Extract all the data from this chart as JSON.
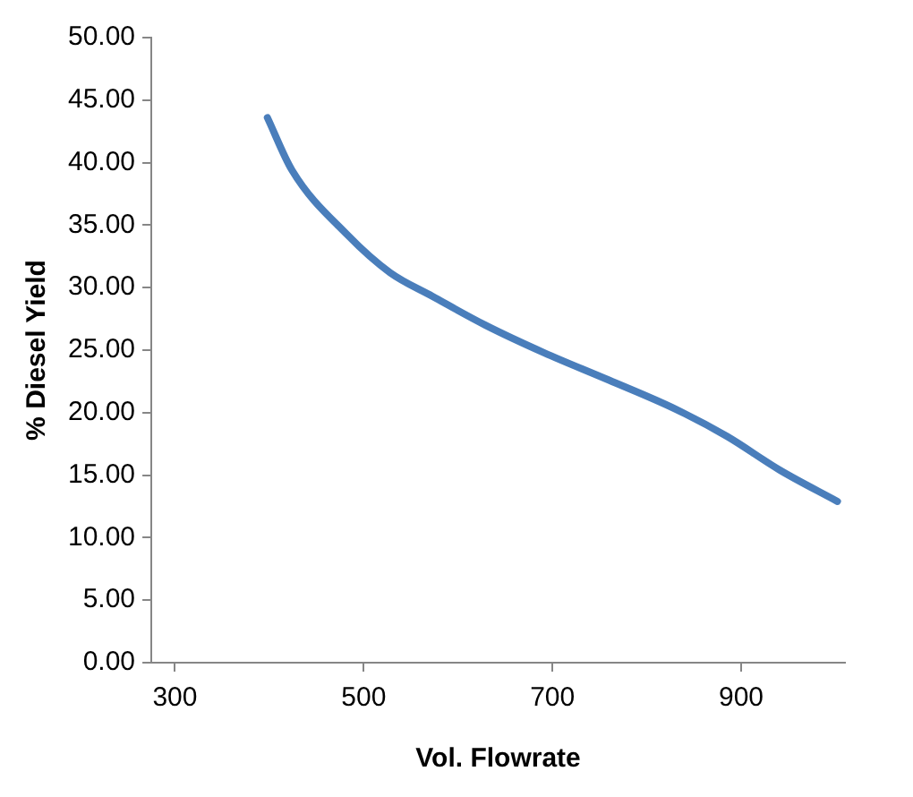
{
  "chart_data": {
    "type": "line",
    "xlabel": "Vol. Flowrate",
    "ylabel": "% Diesel Yield",
    "x": [
      398,
      424,
      483,
      528,
      573,
      629,
      691,
      760,
      830,
      885,
      941,
      1002
    ],
    "series": [
      {
        "color": "#4a7ebb",
        "values": [
          43.6,
          39.4,
          34.2,
          31.2,
          29.3,
          27.0,
          24.8,
          22.6,
          20.3,
          18.1,
          15.4,
          12.9
        ]
      }
    ],
    "xlim": [
      275,
      1010
    ],
    "xticks": [
      300,
      500,
      700,
      900
    ],
    "ylim": [
      0,
      50
    ],
    "yticks": [
      {
        "value": 0,
        "label": "0.00"
      },
      {
        "value": 5,
        "label": "5.00"
      },
      {
        "value": 10,
        "label": "10.00"
      },
      {
        "value": 15,
        "label": "15.00"
      },
      {
        "value": 20,
        "label": "20.00"
      },
      {
        "value": 25,
        "label": "25.00"
      },
      {
        "value": 30,
        "label": "30.00"
      },
      {
        "value": 35,
        "label": "35.00"
      },
      {
        "value": 40,
        "label": "40.00"
      },
      {
        "value": 45,
        "label": "45.00"
      },
      {
        "value": 50,
        "label": "50.00"
      }
    ],
    "grid": false,
    "legend": false,
    "marker": "none",
    "line_style": "solid"
  }
}
